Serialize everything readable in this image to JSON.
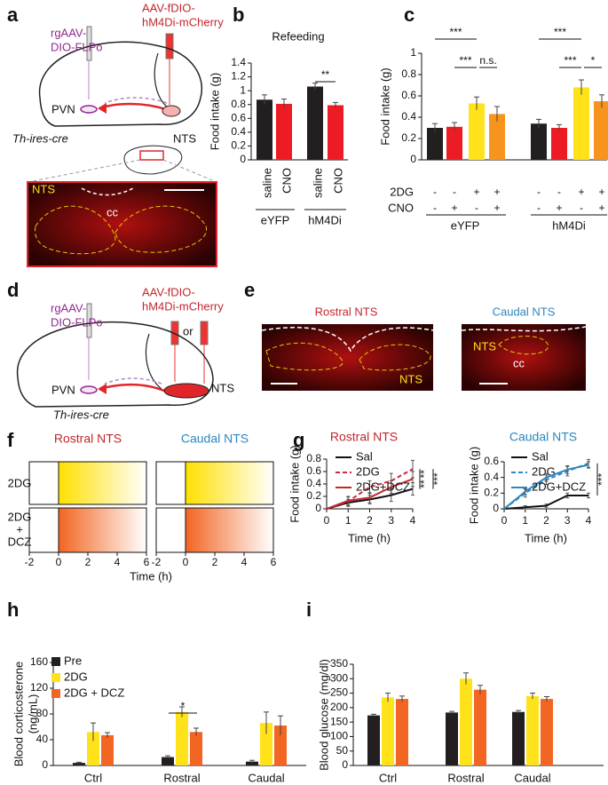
{
  "figure": {
    "panels": [
      "a",
      "b",
      "c",
      "d",
      "e",
      "f",
      "g",
      "h",
      "i"
    ],
    "a": {
      "virus_left": [
        "rgAAV-",
        "DIO-FLPo"
      ],
      "virus_right": [
        "AAV-fDIO-",
        "hM4Di-mCherry"
      ],
      "regions": [
        "PVN",
        "NTS"
      ],
      "mouse": "Th-ires-cre",
      "inset": [
        "NTS",
        "cc"
      ]
    },
    "d": {
      "virus_left": [
        "rgAAV-",
        "DIO-FLPo"
      ],
      "virus_right": [
        "AAV-fDIO-",
        "hM4Di-mCherry"
      ],
      "or": "or",
      "regions": [
        "PVN",
        "NTS"
      ],
      "mouse": "Th-ires-cre"
    },
    "e": {
      "titles": [
        "Rostral NTS",
        "Caudal NTS"
      ],
      "labels": [
        "NTS",
        "NTS",
        "cc"
      ]
    }
  },
  "chart_data": [
    {
      "type": "bar",
      "title": "Refeeding",
      "ylabel": "Food intake (g)",
      "categories": [
        "saline",
        "CNO",
        "saline",
        "CNO"
      ],
      "groups": [
        "eYFP",
        "hM4Di"
      ],
      "values": [
        0.87,
        0.81,
        1.06,
        0.79
      ],
      "errors": [
        0.07,
        0.07,
        0.05,
        0.04
      ],
      "colors": [
        "#231f20",
        "#ed1c24",
        "#231f20",
        "#ed1c24"
      ],
      "ylim": [
        0,
        1.4
      ],
      "yticks": [
        0,
        0.2,
        0.4,
        0.6,
        0.8,
        1,
        1.2,
        1.4
      ],
      "significance": [
        {
          "label": "**"
        }
      ]
    },
    {
      "type": "bar",
      "ylabel": "Food intake (g)",
      "groups": [
        "eYFP",
        "hM4Di"
      ],
      "rows": [
        {
          "label": "2DG",
          "signs": [
            "-",
            "-",
            "+",
            "+",
            "-",
            "-",
            "+",
            "+"
          ]
        },
        {
          "label": "CNO",
          "signs": [
            "-",
            "+",
            "-",
            "+",
            "-",
            "+",
            "-",
            "+"
          ]
        }
      ],
      "values": [
        0.3,
        0.31,
        0.53,
        0.43,
        0.34,
        0.3,
        0.68,
        0.55
      ],
      "errors": [
        0.04,
        0.04,
        0.06,
        0.07,
        0.04,
        0.03,
        0.07,
        0.06
      ],
      "colors": [
        "#231f20",
        "#ed1c24",
        "#ffe21a",
        "#f7941d",
        "#231f20",
        "#ed1c24",
        "#ffe21a",
        "#f7941d"
      ],
      "ylim": [
        0,
        1
      ],
      "yticks": [
        0,
        0.2,
        0.4,
        0.6,
        0.8,
        1
      ],
      "significance": [
        {
          "label": "***"
        },
        {
          "label": "***"
        },
        {
          "label": "n.s."
        },
        {
          "label": "***"
        },
        {
          "label": "***"
        },
        {
          "label": "*"
        }
      ]
    },
    {
      "type": "raster",
      "titles": [
        "Rostral NTS",
        "Caudal NTS"
      ],
      "title_colors": [
        "#c1272d",
        "#2e86c1"
      ],
      "rows": [
        [
          "2DG"
        ],
        [
          "2DG",
          "+",
          "DCZ"
        ]
      ],
      "xlabel": "Time (h)",
      "xlim": [
        -2,
        6
      ],
      "xticks": [
        -2,
        0,
        2,
        4,
        6
      ]
    },
    {
      "type": "line",
      "title": "Rostral NTS",
      "title_color": "#c1272d",
      "xlabel": "Time (h)",
      "ylabel": "Food intake (g)",
      "x": [
        0,
        1,
        2,
        3,
        4
      ],
      "xlim": [
        0,
        4
      ],
      "xticks": [
        0,
        1,
        2,
        3,
        4
      ],
      "ylim": [
        0,
        0.8
      ],
      "yticks": [
        0,
        0.2,
        0.4,
        0.6,
        0.8
      ],
      "series": [
        {
          "name": "Sal",
          "color": "#111111",
          "dash": false,
          "values": [
            0,
            0.1,
            0.15,
            0.22,
            0.32
          ],
          "errors": [
            0,
            0.05,
            0.07,
            0.1,
            0.1
          ]
        },
        {
          "name": "2DG",
          "color": "#d7263d",
          "dash": true,
          "values": [
            0,
            0.12,
            0.35,
            0.45,
            0.64
          ],
          "errors": [
            0,
            0.08,
            0.1,
            0.12,
            0.14
          ]
        },
        {
          "name": "2DG+DCZ",
          "color": "#c1272d",
          "dash": false,
          "values": [
            0,
            0.13,
            0.18,
            0.35,
            0.48
          ],
          "errors": [
            0,
            0.06,
            0.08,
            0.1,
            0.12
          ]
        }
      ],
      "significance": [
        {
          "label": "**"
        },
        {
          "label": "**"
        },
        {
          "label": "***"
        }
      ]
    },
    {
      "type": "line",
      "title": "Caudal NTS",
      "title_color": "#2e86c1",
      "xlabel": "Time (h)",
      "ylabel": "Food intake (g)",
      "x": [
        0,
        1,
        2,
        3,
        4
      ],
      "xlim": [
        0,
        4
      ],
      "xticks": [
        0,
        1,
        2,
        3,
        4
      ],
      "ylim": [
        0,
        0.6
      ],
      "yticks": [
        0,
        0.2,
        0.4,
        0.6
      ],
      "series": [
        {
          "name": "Sal",
          "color": "#111111",
          "dash": false,
          "values": [
            0,
            0.02,
            0.04,
            0.17,
            0.17
          ],
          "errors": [
            0,
            0.02,
            0.02,
            0.03,
            0.03
          ]
        },
        {
          "name": "2DG",
          "color": "#2e86c1",
          "dash": true,
          "values": [
            0,
            0.2,
            0.37,
            0.48,
            0.58
          ],
          "errors": [
            0,
            0.05,
            0.06,
            0.06,
            0.05
          ]
        },
        {
          "name": "2DG+DCZ",
          "color": "#2e86c1",
          "dash": false,
          "values": [
            0,
            0.22,
            0.4,
            0.5,
            0.56
          ],
          "errors": [
            0,
            0.04,
            0.05,
            0.05,
            0.04
          ]
        }
      ],
      "significance": [
        {
          "label": "***"
        }
      ]
    },
    {
      "type": "bar",
      "ylabel": [
        "Blood corticosterone",
        "(ng/mL)"
      ],
      "categories": [
        "Ctrl",
        "Rostral",
        "Caudal"
      ],
      "ylim": [
        0,
        160
      ],
      "yticks": [
        0,
        40,
        80,
        120,
        160
      ],
      "series": [
        {
          "name": "Pre",
          "color": "#231f20",
          "values": [
            4,
            13,
            6
          ],
          "errors": [
            1,
            2,
            2
          ]
        },
        {
          "name": "2DG",
          "color": "#ffe21a",
          "values": [
            52,
            83,
            66
          ],
          "errors": [
            14,
            8,
            17
          ]
        },
        {
          "name": "2DG + DCZ",
          "color": "#f26522",
          "values": [
            47,
            52,
            62
          ],
          "errors": [
            4,
            6,
            15
          ]
        }
      ],
      "significance": [
        {
          "label": "*"
        }
      ]
    },
    {
      "type": "bar",
      "ylabel": "Blood glucose (mg/dl)",
      "categories": [
        "Ctrl",
        "Rostral",
        "Caudal"
      ],
      "ylim": [
        0,
        350
      ],
      "yticks": [
        0,
        50,
        100,
        150,
        200,
        250,
        300,
        350
      ],
      "series": [
        {
          "color": "#231f20",
          "values": [
            173,
            183,
            185
          ],
          "errors": [
            4,
            4,
            5
          ]
        },
        {
          "color": "#ffe21a",
          "values": [
            235,
            300,
            240
          ],
          "errors": [
            15,
            20,
            10
          ]
        },
        {
          "color": "#f26522",
          "values": [
            230,
            262,
            230
          ],
          "errors": [
            10,
            15,
            8
          ]
        }
      ]
    }
  ]
}
